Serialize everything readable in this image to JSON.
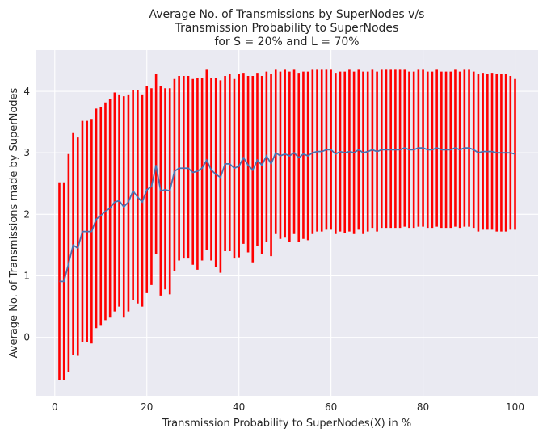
{
  "chart_data": {
    "type": "line",
    "title_lines": [
      "Average No. of Transmissions by SuperNodes v/s",
      "Transmission Probability to SuperNodes",
      "for S = 20% and L = 70%"
    ],
    "xlabel": "Transmission Probability to SuperNodes(X) in %",
    "ylabel": "Average No. of Transmissions made by SuperNodes",
    "xlim": [
      -4,
      105
    ],
    "ylim": [
      -0.95,
      4.67
    ],
    "x_ticks": [
      0,
      20,
      40,
      60,
      80,
      100
    ],
    "y_ticks": [
      0,
      1,
      2,
      3,
      4
    ],
    "grid": true,
    "error_bar_color": "#ff0000",
    "line_color": "#4c72b0",
    "plot_bg": "#eaeaf2",
    "grid_color": "#ffffff",
    "series": [
      {
        "x": [
          1,
          2,
          3,
          4,
          5,
          6,
          7,
          8,
          9,
          10,
          11,
          12,
          13,
          14,
          15,
          16,
          17,
          18,
          19,
          20,
          21,
          22,
          23,
          24,
          25,
          26,
          27,
          28,
          29,
          30,
          31,
          32,
          33,
          34,
          35,
          36,
          37,
          38,
          39,
          40,
          41,
          42,
          43,
          44,
          45,
          46,
          47,
          48,
          49,
          50,
          51,
          52,
          53,
          54,
          55,
          56,
          57,
          58,
          59,
          60,
          61,
          62,
          63,
          64,
          65,
          66,
          67,
          68,
          69,
          70,
          71,
          72,
          73,
          74,
          75,
          76,
          77,
          78,
          79,
          80,
          81,
          82,
          83,
          84,
          85,
          86,
          87,
          88,
          89,
          90,
          91,
          92,
          93,
          94,
          95,
          96,
          97,
          98,
          99,
          100
        ],
        "mean": [
          0.91,
          0.91,
          1.2,
          1.5,
          1.45,
          1.72,
          1.72,
          1.72,
          1.92,
          1.98,
          2.05,
          2.1,
          2.2,
          2.22,
          2.12,
          2.2,
          2.38,
          2.28,
          2.2,
          2.4,
          2.45,
          2.8,
          2.38,
          2.4,
          2.38,
          2.7,
          2.75,
          2.75,
          2.75,
          2.68,
          2.7,
          2.75,
          2.88,
          2.72,
          2.65,
          2.6,
          2.82,
          2.82,
          2.75,
          2.78,
          2.92,
          2.8,
          2.72,
          2.88,
          2.8,
          2.95,
          2.82,
          3.0,
          2.95,
          2.98,
          2.95,
          3.0,
          2.92,
          2.98,
          2.95,
          3.0,
          3.02,
          3.02,
          3.05,
          3.05,
          2.98,
          3.02,
          3.0,
          3.02,
          3.0,
          3.05,
          3.0,
          3.02,
          3.05,
          3.02,
          3.05,
          3.05,
          3.05,
          3.05,
          3.05,
          3.08,
          3.05,
          3.05,
          3.08,
          3.08,
          3.05,
          3.05,
          3.08,
          3.05,
          3.05,
          3.05,
          3.08,
          3.05,
          3.08,
          3.08,
          3.05,
          3.0,
          3.02,
          3.02,
          3.02,
          3.0,
          3.0,
          3.0,
          3.0,
          2.98
        ],
        "upper": [
          2.52,
          2.52,
          2.98,
          3.32,
          3.25,
          3.52,
          3.52,
          3.55,
          3.72,
          3.75,
          3.82,
          3.88,
          3.98,
          3.95,
          3.92,
          3.95,
          4.02,
          4.02,
          3.95,
          4.08,
          4.05,
          4.28,
          4.08,
          4.05,
          4.05,
          4.2,
          4.25,
          4.25,
          4.25,
          4.2,
          4.22,
          4.22,
          4.35,
          4.22,
          4.22,
          4.18,
          4.25,
          4.28,
          4.2,
          4.28,
          4.3,
          4.25,
          4.25,
          4.3,
          4.25,
          4.32,
          4.28,
          4.35,
          4.32,
          4.35,
          4.32,
          4.35,
          4.3,
          4.32,
          4.32,
          4.35,
          4.35,
          4.35,
          4.35,
          4.35,
          4.3,
          4.32,
          4.32,
          4.35,
          4.32,
          4.35,
          4.32,
          4.32,
          4.35,
          4.32,
          4.35,
          4.35,
          4.35,
          4.35,
          4.35,
          4.35,
          4.32,
          4.32,
          4.35,
          4.35,
          4.32,
          4.32,
          4.35,
          4.32,
          4.32,
          4.32,
          4.35,
          4.32,
          4.35,
          4.35,
          4.32,
          4.28,
          4.3,
          4.28,
          4.3,
          4.28,
          4.28,
          4.28,
          4.25,
          4.2
        ],
        "lower": [
          -0.7,
          -0.7,
          -0.57,
          -0.28,
          -0.3,
          -0.08,
          -0.08,
          -0.1,
          0.15,
          0.2,
          0.28,
          0.32,
          0.42,
          0.5,
          0.32,
          0.42,
          0.6,
          0.55,
          0.5,
          0.72,
          0.85,
          1.35,
          0.68,
          0.78,
          0.7,
          1.08,
          1.25,
          1.28,
          1.28,
          1.18,
          1.1,
          1.25,
          1.42,
          1.25,
          1.15,
          1.05,
          1.4,
          1.4,
          1.28,
          1.3,
          1.52,
          1.38,
          1.22,
          1.48,
          1.35,
          1.55,
          1.32,
          1.68,
          1.6,
          1.62,
          1.55,
          1.68,
          1.55,
          1.6,
          1.58,
          1.68,
          1.72,
          1.72,
          1.75,
          1.75,
          1.68,
          1.72,
          1.7,
          1.72,
          1.68,
          1.75,
          1.68,
          1.72,
          1.78,
          1.72,
          1.78,
          1.78,
          1.78,
          1.78,
          1.78,
          1.8,
          1.78,
          1.78,
          1.8,
          1.8,
          1.78,
          1.78,
          1.8,
          1.78,
          1.78,
          1.78,
          1.8,
          1.78,
          1.8,
          1.8,
          1.78,
          1.72,
          1.75,
          1.75,
          1.75,
          1.72,
          1.72,
          1.72,
          1.75,
          1.75
        ]
      }
    ]
  }
}
